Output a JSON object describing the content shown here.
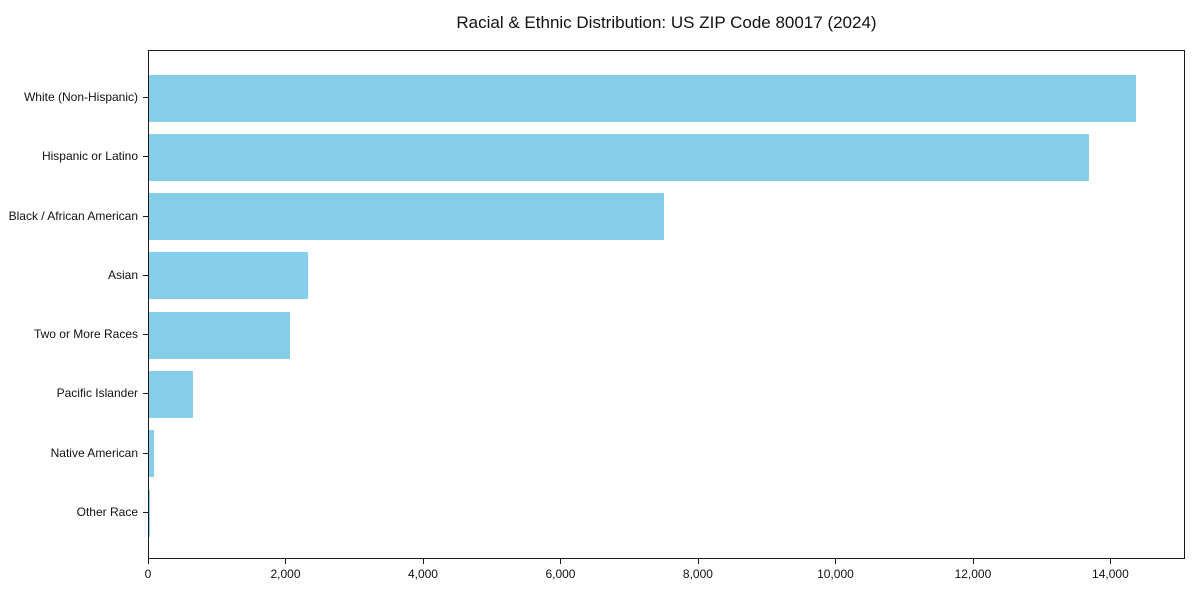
{
  "chart_data": {
    "type": "bar",
    "orientation": "horizontal",
    "title": "Racial & Ethnic Distribution: US ZIP Code 80017 (2024)",
    "xlabel": "",
    "ylabel": "",
    "categories": [
      "White (Non-Hispanic)",
      "Hispanic or Latino",
      "Black / African American",
      "Asian",
      "Two or More Races",
      "Pacific Islander",
      "Native American",
      "Other Race"
    ],
    "values": [
      14380,
      13700,
      7505,
      2315,
      2060,
      645,
      75,
      20
    ],
    "xlim": [
      0,
      15085
    ],
    "x_ticks": [
      0,
      2000,
      4000,
      6000,
      8000,
      10000,
      12000,
      14000
    ],
    "x_tick_labels": [
      "0",
      "2,000",
      "4,000",
      "6,000",
      "8,000",
      "10,000",
      "12,000",
      "14,000"
    ],
    "bar_color": "#87CEEB",
    "spine_color": "#1a1a1a",
    "text_color": "#111111",
    "grid": false,
    "legend": null
  }
}
